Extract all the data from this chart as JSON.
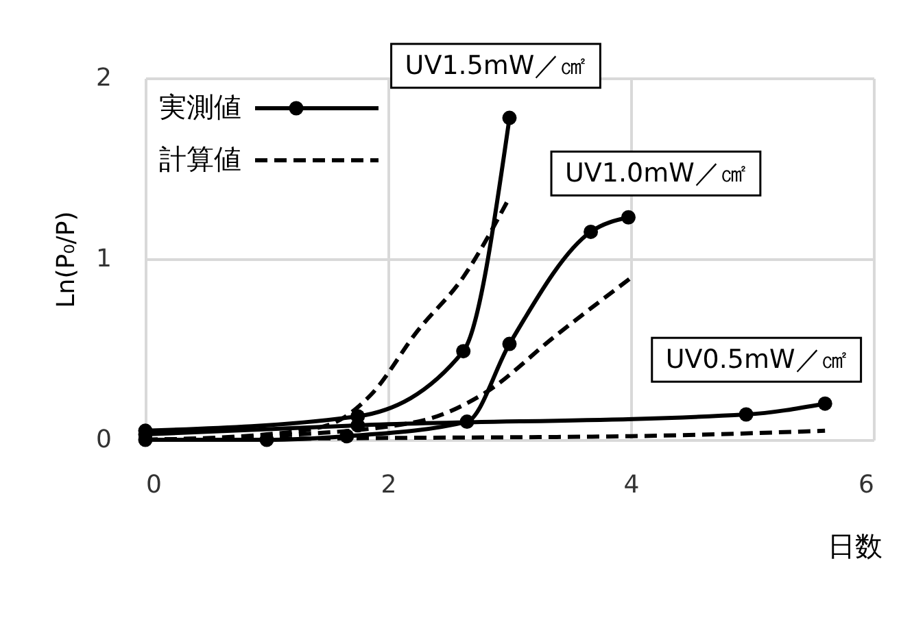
{
  "chart_data": {
    "type": "line",
    "xlabel": "日数",
    "ylabel": "Ln(P₀/P)",
    "xlim": [
      0,
      6
    ],
    "xticks": [
      0,
      2,
      4,
      6
    ],
    "ylim": [
      0,
      2
    ],
    "yticks": [
      0,
      1,
      2
    ],
    "grid": true,
    "legend": "top left",
    "series": [
      {
        "name": "実測値",
        "color": "#000000",
        "line_style": "solid",
        "marker": "circle",
        "x": [
          0,
          1.75,
          2.62,
          3.0
        ],
        "values": [
          0.05,
          0.13,
          0.49,
          1.78
        ]
      },
      {
        "color": "#000000",
        "line_style": "solid",
        "marker": "circle",
        "x": [
          0,
          1,
          1.66,
          2.65,
          3.0,
          3.67,
          3.98
        ],
        "values": [
          0,
          0,
          0.02,
          0.1,
          0.53,
          1.15,
          1.23
        ]
      },
      {
        "color": "#000000",
        "line_style": "solid",
        "marker": "circle",
        "x": [
          0,
          1.75,
          4.95,
          5.6
        ],
        "values": [
          0.03,
          0.08,
          0.14,
          0.2
        ]
      },
      {
        "name": "計算値",
        "color": "#000000",
        "line_style": "dashed",
        "marker": "none",
        "x": [
          0,
          1,
          1.5,
          1.86,
          2.24,
          2.62,
          3.0
        ],
        "values": [
          0,
          0.03,
          0.08,
          0.25,
          0.6,
          0.9,
          1.34
        ]
      },
      {
        "color": "#000000",
        "line_style": "dashed",
        "marker": "none",
        "x": [
          0,
          1,
          2.24,
          2.8,
          3.37,
          3.99
        ],
        "values": [
          0,
          0.02,
          0.1,
          0.26,
          0.57,
          0.89
        ]
      },
      {
        "color": "#000000",
        "line_style": "dashed",
        "marker": "none",
        "x": [
          0,
          2,
          4,
          5.6
        ],
        "values": [
          0,
          0.01,
          0.02,
          0.05
        ]
      }
    ],
    "annotations": [
      {
        "text": "UV1.5mW／㎠",
        "x": 3.0,
        "y": 1.78
      },
      {
        "text": "UV1.0mW／㎠",
        "x": 3.98,
        "y": 1.23
      },
      {
        "text": "UV0.5mW／㎠",
        "x": 5.6,
        "y": 0.2
      }
    ]
  }
}
